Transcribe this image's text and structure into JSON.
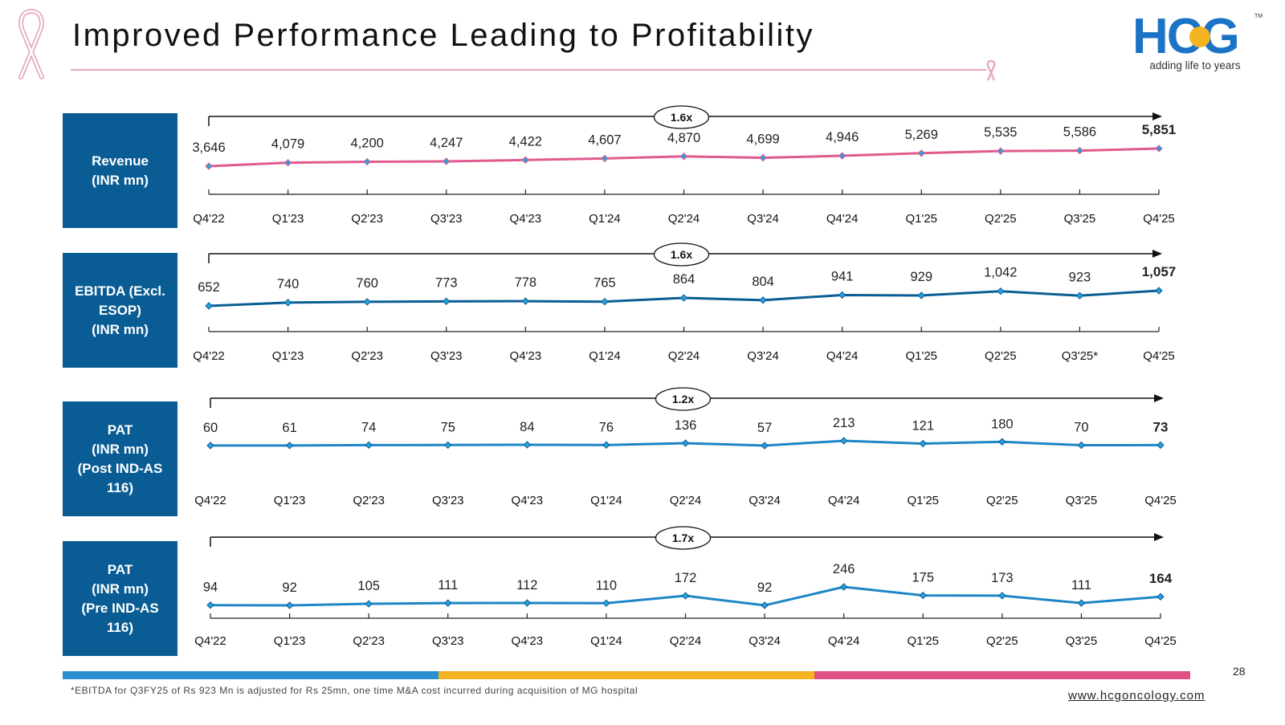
{
  "header": {
    "title": "Improved Performance Leading to Profitability",
    "logo_text": "HCG",
    "tagline": "adding life to years",
    "trademark": "TM"
  },
  "colors": {
    "box": "#0a5d94",
    "revenue": "#e05a8f",
    "ebitda": "#0a5d94",
    "pat": "#1d86c6",
    "bar": [
      "#2a8fd1",
      "#f4b321",
      "#e14f87"
    ]
  },
  "chart_data": [
    {
      "type": "line",
      "name": "Revenue",
      "label": "Revenue\n(INR mn)",
      "growth": "1.6x",
      "categories": [
        "Q4'22",
        "Q1'23",
        "Q2'23",
        "Q3'23",
        "Q4'23",
        "Q1'24",
        "Q2'24",
        "Q3'24",
        "Q4'24",
        "Q1'25",
        "Q2'25",
        "Q3'25",
        "Q4'25"
      ],
      "values": [
        3646,
        4079,
        4200,
        4247,
        4422,
        4607,
        4870,
        4699,
        4946,
        5269,
        5535,
        5586,
        5851
      ],
      "value_labels": [
        "3,646",
        "4,079",
        "4,200",
        "4,247",
        "4,422",
        "4,607",
        "4,870",
        "4,699",
        "4,946",
        "5,269",
        "5,535",
        "5,586",
        "5,851"
      ]
    },
    {
      "type": "line",
      "name": "EBITDA",
      "label": "EBITDA (Excl.\nESOP)\n(INR mn)",
      "growth": "1.6x",
      "categories": [
        "Q4'22",
        "Q1'23",
        "Q2'23",
        "Q3'23",
        "Q4'23",
        "Q1'24",
        "Q2'24",
        "Q3'24",
        "Q4'24",
        "Q1'25",
        "Q2'25",
        "Q3'25*",
        "Q4'25"
      ],
      "values": [
        652,
        740,
        760,
        773,
        778,
        765,
        864,
        804,
        941,
        929,
        1042,
        923,
        1057
      ],
      "value_labels": [
        "652",
        "740",
        "760",
        "773",
        "778",
        "765",
        "864",
        "804",
        "941",
        "929",
        "1,042",
        "923",
        "1,057"
      ]
    },
    {
      "type": "line",
      "name": "PAT Post IND-AS 116",
      "label": "PAT\n(INR mn)\n(Post IND-AS\n116)",
      "growth": "1.2x",
      "categories": [
        "Q4'22",
        "Q1'23",
        "Q2'23",
        "Q3'23",
        "Q4'23",
        "Q1'24",
        "Q2'24",
        "Q3'24",
        "Q4'24",
        "Q1'25",
        "Q2'25",
        "Q3'25",
        "Q4'25"
      ],
      "values": [
        60,
        61,
        74,
        75,
        84,
        76,
        136,
        57,
        213,
        121,
        180,
        70,
        73
      ],
      "value_labels": [
        "60",
        "61",
        "74",
        "75",
        "84",
        "76",
        "136",
        "57",
        "213",
        "121",
        "180",
        "70",
        "73"
      ]
    },
    {
      "type": "line",
      "name": "PAT Pre IND-AS 116",
      "label": "PAT\n(INR mn)\n(Pre IND-AS\n116)",
      "growth": "1.7x",
      "categories": [
        "Q4'22",
        "Q1'23",
        "Q2'23",
        "Q3'23",
        "Q4'23",
        "Q1'24",
        "Q2'24",
        "Q3'24",
        "Q4'24",
        "Q1'25",
        "Q2'25",
        "Q3'25",
        "Q4'25"
      ],
      "values": [
        94,
        92,
        105,
        111,
        112,
        110,
        172,
        92,
        246,
        175,
        173,
        111,
        164
      ],
      "value_labels": [
        "94",
        "92",
        "105",
        "111",
        "112",
        "110",
        "172",
        "92",
        "246",
        "175",
        "173",
        "111",
        "164"
      ]
    }
  ],
  "footer": {
    "footnote": "*EBITDA for Q3FY25 of Rs 923 Mn is adjusted for Rs 25mn, one time M&A cost incurred during acquisition of MG hospital",
    "page_number": "28",
    "website": "www.hcgoncology.com"
  }
}
